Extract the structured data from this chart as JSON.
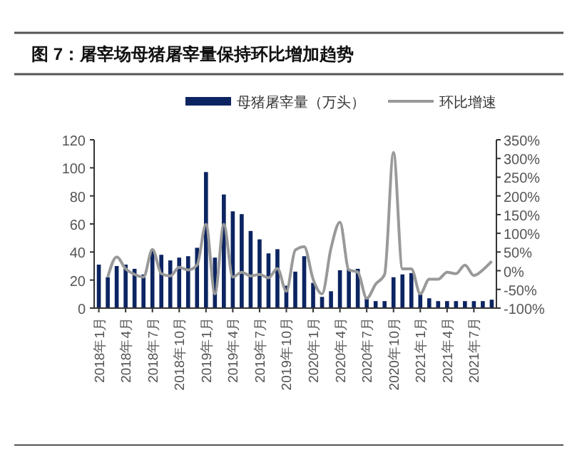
{
  "chart_data": {
    "type": "bar",
    "title": "图 7：屠宰场母猪屠宰量保持环比增加趋势",
    "categories": [
      "2018年1月",
      null,
      null,
      "2018年4月",
      null,
      null,
      "2018年7月",
      null,
      null,
      "2018年10月",
      null,
      null,
      "2019年1月",
      null,
      null,
      "2019年4月",
      null,
      null,
      "2019年7月",
      null,
      null,
      "2019年10月",
      null,
      null,
      "2020年1月",
      null,
      null,
      "2020年4月",
      null,
      null,
      "2020年7月",
      null,
      null,
      "2020年10月",
      null,
      null,
      "2021年1月",
      null,
      null,
      "2021年4月",
      null,
      null,
      "2021年7月",
      null,
      null
    ],
    "series": [
      {
        "name": "母猪屠宰量（万头）",
        "color": "#0c2461",
        "values": [
          31,
          22,
          30,
          31,
          28,
          24,
          42,
          38,
          34,
          36,
          37,
          43,
          97,
          36,
          81,
          69,
          67,
          55,
          49,
          39,
          42,
          16,
          26,
          37,
          18,
          8,
          12,
          27,
          28,
          28,
          7,
          5,
          5,
          22,
          24,
          25,
          10,
          7,
          5,
          5,
          5,
          5,
          5,
          5,
          6
        ]
      },
      {
        "name": "环比增速",
        "type": "line",
        "axis": "y2",
        "color": "#999999",
        "values": [
          null,
          -17,
          37,
          5,
          -10,
          -17,
          57,
          -8,
          -14,
          9,
          2,
          15,
          124,
          -62,
          124,
          -17,
          -4,
          -14,
          -10,
          -19,
          6,
          -55,
          55,
          64,
          -23,
          -62,
          60,
          130,
          2,
          -4,
          -74,
          -36,
          -10,
          316,
          5,
          5,
          -62,
          -23,
          -23,
          -4,
          -8,
          15,
          -13,
          2,
          25
        ]
      }
    ],
    "ylim": [
      0,
      120
    ],
    "yticks": [
      0,
      20,
      40,
      60,
      80,
      100,
      120
    ],
    "y2lim": [
      -100,
      350
    ],
    "y2ticks": [
      {
        "value": -100,
        "label": "-100%"
      },
      {
        "value": -50,
        "label": "-50%"
      },
      {
        "value": 0,
        "label": "0%"
      },
      {
        "value": 50,
        "label": "50%"
      },
      {
        "value": 100,
        "label": "100%"
      },
      {
        "value": 150,
        "label": "150%"
      },
      {
        "value": 200,
        "label": "200%"
      },
      {
        "value": 250,
        "label": "250%"
      },
      {
        "value": 300,
        "label": "300%"
      },
      {
        "value": 350,
        "label": "350%"
      }
    ],
    "legend": "top",
    "grid": false,
    "marker": "none",
    "line_style": "solid"
  }
}
